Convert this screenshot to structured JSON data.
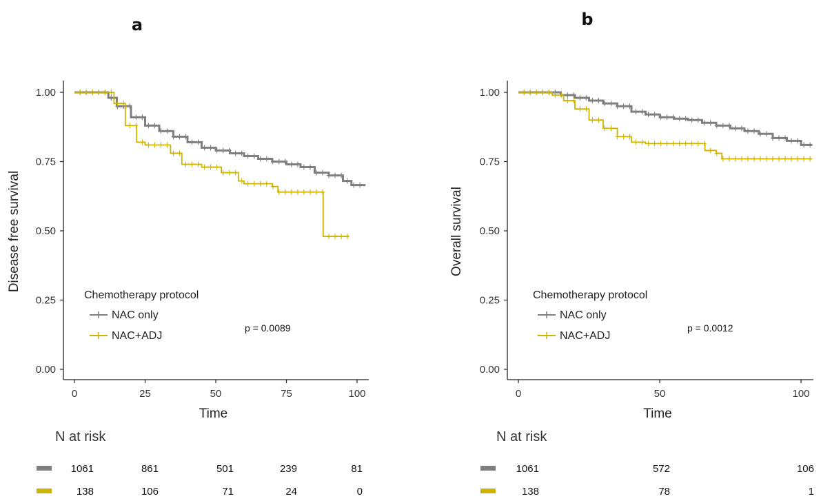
{
  "colors": {
    "nac_only": "#7f7f7f",
    "nac_adj": "#ccb400"
  },
  "chart_data": [
    {
      "panel": "a",
      "type": "line",
      "subtype": "kaplan-meier",
      "xlabel": "Time",
      "ylabel": "Disease free survival",
      "xlim": [
        0,
        103
      ],
      "ylim": [
        0,
        1.05
      ],
      "xticks": [
        0,
        25,
        50,
        75,
        100
      ],
      "yticks": [
        "0.00",
        "0.25",
        "0.50",
        "0.75",
        "1.00"
      ],
      "legend": {
        "title": "Chemotherapy protocol",
        "placement": "lower-left",
        "entries": [
          "NAC only",
          "NAC+ADJ"
        ]
      },
      "annotation": "p = 0.0089",
      "series": [
        {
          "name": "NAC only",
          "color": "#7f7f7f",
          "x": [
            0,
            8,
            12,
            15,
            20,
            25,
            30,
            35,
            40,
            45,
            50,
            55,
            60,
            65,
            70,
            75,
            80,
            85,
            90,
            95,
            98,
            103
          ],
          "y": [
            1.0,
            1.0,
            0.98,
            0.95,
            0.91,
            0.88,
            0.86,
            0.84,
            0.82,
            0.8,
            0.79,
            0.78,
            0.77,
            0.76,
            0.75,
            0.74,
            0.73,
            0.71,
            0.7,
            0.68,
            0.665,
            0.665
          ]
        },
        {
          "name": "NAC+ADJ",
          "color": "#ccb400",
          "x": [
            0,
            10,
            14,
            18,
            22,
            25,
            30,
            34,
            38,
            45,
            52,
            58,
            60,
            64,
            70,
            72,
            80,
            88,
            88,
            97
          ],
          "y": [
            1.0,
            1.0,
            0.96,
            0.88,
            0.82,
            0.81,
            0.81,
            0.78,
            0.74,
            0.73,
            0.71,
            0.68,
            0.67,
            0.67,
            0.66,
            0.64,
            0.64,
            0.64,
            0.48,
            0.48
          ]
        }
      ],
      "risk_table": {
        "title": "N at risk",
        "times": [
          0,
          25,
          50,
          75,
          100
        ],
        "rows": [
          {
            "name": "NAC only",
            "color": "#7f7f7f",
            "values": [
              "1061",
              "861",
              "501",
              "239",
              "81"
            ]
          },
          {
            "name": "NAC+ADJ",
            "color": "#ccb400",
            "values": [
              "138",
              "106",
              "71",
              "24",
              "0"
            ]
          }
        ]
      }
    },
    {
      "panel": "b",
      "type": "line",
      "subtype": "kaplan-meier",
      "xlabel": "Time",
      "ylabel": "Overall survival",
      "xlim": [
        0,
        104
      ],
      "ylim": [
        0,
        1.05
      ],
      "xticks": [
        0,
        50,
        100
      ],
      "yticks": [
        "0.00",
        "0.25",
        "0.50",
        "0.75",
        "1.00"
      ],
      "legend": {
        "title": "Chemotherapy protocol",
        "placement": "lower-left",
        "entries": [
          "NAC only",
          "NAC+ADJ"
        ]
      },
      "annotation": "p = 0.0012",
      "series": [
        {
          "name": "NAC only",
          "color": "#7f7f7f",
          "x": [
            0,
            8,
            15,
            20,
            25,
            30,
            35,
            40,
            45,
            50,
            55,
            60,
            65,
            70,
            75,
            80,
            85,
            90,
            95,
            100,
            104
          ],
          "y": [
            1.0,
            1.0,
            0.99,
            0.98,
            0.97,
            0.96,
            0.95,
            0.93,
            0.92,
            0.91,
            0.905,
            0.9,
            0.89,
            0.88,
            0.87,
            0.86,
            0.85,
            0.835,
            0.825,
            0.81,
            0.81
          ]
        },
        {
          "name": "NAC+ADJ",
          "color": "#ccb400",
          "x": [
            0,
            8,
            12,
            16,
            20,
            25,
            30,
            35,
            40,
            45,
            60,
            66,
            70,
            72,
            76,
            104
          ],
          "y": [
            1.0,
            1.0,
            0.99,
            0.97,
            0.94,
            0.9,
            0.87,
            0.84,
            0.82,
            0.815,
            0.815,
            0.79,
            0.78,
            0.76,
            0.76,
            0.76
          ]
        }
      ],
      "risk_table": {
        "title": "N at risk",
        "times": [
          0,
          50,
          100
        ],
        "rows": [
          {
            "name": "NAC only",
            "color": "#7f7f7f",
            "values": [
              "1061",
              "572",
              "106"
            ]
          },
          {
            "name": "NAC+ADJ",
            "color": "#ccb400",
            "values": [
              "138",
              "78",
              "1"
            ]
          }
        ]
      }
    }
  ]
}
